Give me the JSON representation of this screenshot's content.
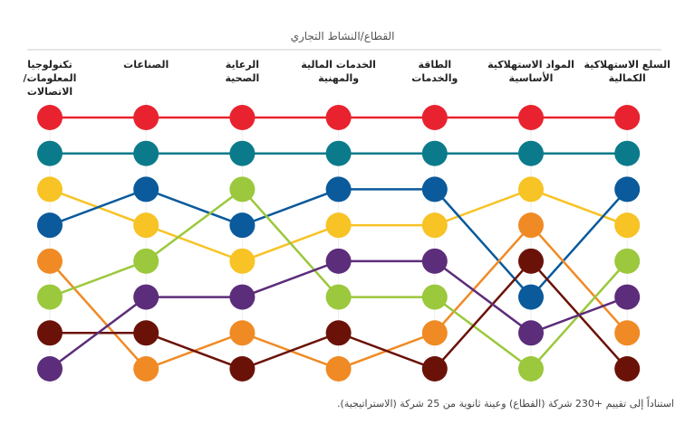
{
  "chart_data": {
    "type": "bump",
    "title": "القطاع/النشاط التجاري",
    "categories": [
      "تكنولوجيا\nالمعلومات/\nالاتصالات",
      "الصناعات",
      "الرعاية\nالصحية",
      "الخدمات المالية\nوالمهنية",
      "الطاقة\nوالخدمات",
      "المواد الاستهلاكية\nالأساسية",
      "السلع الاستهلاكية\nالكمالية"
    ],
    "ylim": [
      8,
      1
    ],
    "series": [
      {
        "color": "#e8232f",
        "values": [
          1,
          1,
          1,
          1,
          1,
          1,
          1
        ]
      },
      {
        "color": "#0b7b8b",
        "values": [
          2,
          2,
          2,
          2,
          2,
          2,
          2
        ]
      },
      {
        "color": "#f7c325",
        "values": [
          3,
          4,
          5,
          4,
          4,
          3,
          4
        ]
      },
      {
        "color": "#0a5a9c",
        "values": [
          4,
          3,
          4,
          3,
          3,
          6,
          3
        ]
      },
      {
        "color": "#f08a24",
        "values": [
          5,
          8,
          7,
          8,
          7,
          4,
          7
        ]
      },
      {
        "color": "#9bc83c",
        "values": [
          6,
          5,
          3,
          6,
          6,
          8,
          5
        ]
      },
      {
        "color": "#6b1208",
        "values": [
          7,
          7,
          8,
          7,
          8,
          5,
          8
        ]
      },
      {
        "color": "#5c2d7a",
        "values": [
          8,
          6,
          6,
          5,
          5,
          7,
          6
        ]
      }
    ],
    "note": "استناداً إلى تقييم +230 شركة (القطاع) وعينة ثانوية من 25 شركة (الاستراتيجية)."
  }
}
